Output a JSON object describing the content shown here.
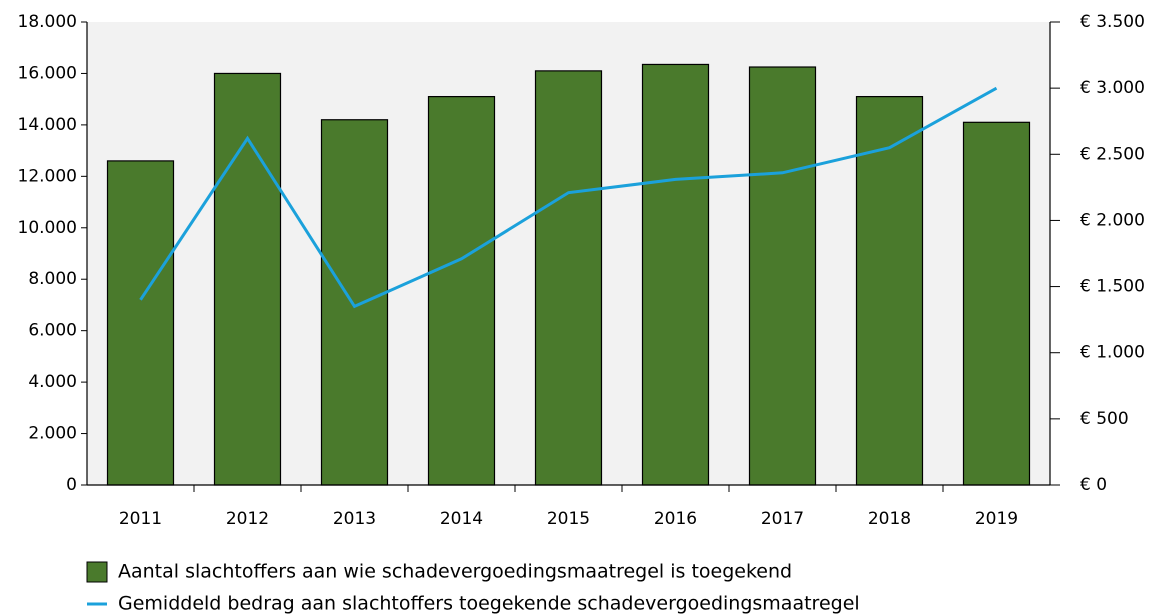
{
  "chart_data": {
    "type": "bar",
    "categories": [
      "2011",
      "2012",
      "2013",
      "2014",
      "2015",
      "2016",
      "2017",
      "2018",
      "2019"
    ],
    "series": [
      {
        "name": "Aantal slachtoffers aan wie schadevergoedingsmaatregel is toegekend",
        "type": "bar",
        "color": "#4a7a2c",
        "values": [
          12600,
          16000,
          14200,
          15100,
          16100,
          16350,
          16250,
          15100,
          14100
        ]
      },
      {
        "name": "Gemiddeld bedrag aan slachtoffers toegekende schadevergoedingsmaatregel",
        "type": "line",
        "axis": "y2",
        "color": "#1ba1db",
        "values": [
          1400,
          2620,
          1350,
          1710,
          2210,
          2310,
          2360,
          2550,
          3000
        ]
      }
    ],
    "ylim": [
      0,
      18000
    ],
    "yticks": [
      0,
      {
        "value": 2000,
        "label": "2.000"
      },
      {
        "value": 4000,
        "label": "4.000"
      },
      {
        "value": 6000,
        "label": "6.000"
      },
      {
        "value": 8000,
        "label": "8.000"
      },
      {
        "value": 10000,
        "label": "10.000"
      },
      {
        "value": 12000,
        "label": "12.000"
      },
      {
        "value": 14000,
        "label": "14.000"
      },
      {
        "value": 16000,
        "label": "16.000"
      },
      {
        "value": 18000,
        "label": "18.000"
      }
    ],
    "y2lim": [
      0,
      3500
    ],
    "y2ticks": [
      {
        "value": 0,
        "label": "€ 0"
      },
      {
        "value": 500,
        "label": "€ 500"
      },
      {
        "value": 1000,
        "label": "€ 1.000"
      },
      {
        "value": 1500,
        "label": "€ 1.500"
      },
      {
        "value": 2000,
        "label": "€ 2.000"
      },
      {
        "value": 2500,
        "label": "€ 2.500"
      },
      {
        "value": 3000,
        "label": "€ 3.000"
      },
      {
        "value": 3500,
        "label": "€ 3.500"
      }
    ],
    "plot_background": "#f2f2f2"
  }
}
